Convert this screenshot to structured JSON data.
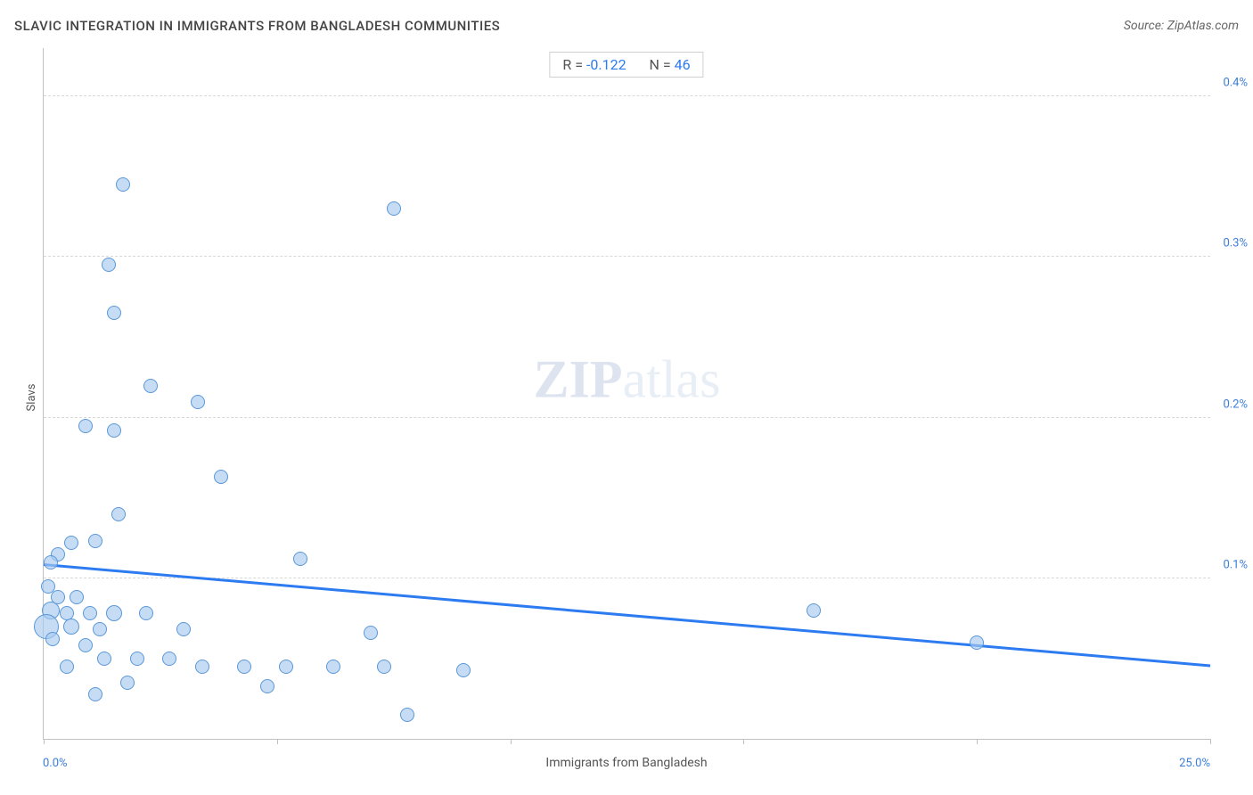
{
  "title": "SLAVIC INTEGRATION IN IMMIGRANTS FROM BANGLADESH COMMUNITIES",
  "source": "Source: ZipAtlas.com",
  "watermark_bold": "ZIP",
  "watermark_light": "atlas",
  "stats": {
    "r_label": "R =",
    "r_value": "-0.122",
    "n_label": "N =",
    "n_value": "46"
  },
  "chart": {
    "type": "scatter",
    "xlabel": "Immigrants from Bangladesh",
    "ylabel": "Slavs",
    "xlim": [
      0.0,
      25.0
    ],
    "ylim": [
      0.0,
      0.43
    ],
    "x_min_label": "0.0%",
    "x_max_label": "25.0%",
    "y_ticks": [
      0.1,
      0.2,
      0.3,
      0.4
    ],
    "y_tick_labels": [
      "0.1%",
      "0.2%",
      "0.3%",
      "0.4%"
    ],
    "x_tick_positions": [
      0,
      5,
      10,
      15,
      20,
      25
    ],
    "grid_color": "#d8d8d8",
    "axis_color": "#c0c0c0",
    "point_fill": "rgba(168,202,240,0.65)",
    "point_stroke": "#5a98d8",
    "trend_color": "#2d7bf0",
    "trend_y_start": 0.108,
    "trend_y_end": 0.045,
    "background_color": "#ffffff",
    "label_color": "#555555",
    "tick_label_color": "#3b7dd8",
    "title_fontsize": 15,
    "label_fontsize": 13,
    "points": [
      {
        "x": 1.7,
        "y": 0.345,
        "r": 8
      },
      {
        "x": 7.5,
        "y": 0.33,
        "r": 8
      },
      {
        "x": 1.4,
        "y": 0.295,
        "r": 8
      },
      {
        "x": 1.5,
        "y": 0.265,
        "r": 8
      },
      {
        "x": 2.3,
        "y": 0.22,
        "r": 8
      },
      {
        "x": 3.3,
        "y": 0.21,
        "r": 8
      },
      {
        "x": 0.9,
        "y": 0.195,
        "r": 8
      },
      {
        "x": 1.5,
        "y": 0.192,
        "r": 8
      },
      {
        "x": 3.8,
        "y": 0.163,
        "r": 8
      },
      {
        "x": 1.6,
        "y": 0.14,
        "r": 8
      },
      {
        "x": 1.1,
        "y": 0.123,
        "r": 8
      },
      {
        "x": 0.6,
        "y": 0.122,
        "r": 8
      },
      {
        "x": 0.3,
        "y": 0.115,
        "r": 8
      },
      {
        "x": 5.5,
        "y": 0.112,
        "r": 8
      },
      {
        "x": 0.15,
        "y": 0.11,
        "r": 8
      },
      {
        "x": 0.1,
        "y": 0.095,
        "r": 8
      },
      {
        "x": 0.3,
        "y": 0.088,
        "r": 8
      },
      {
        "x": 0.7,
        "y": 0.088,
        "r": 8
      },
      {
        "x": 0.15,
        "y": 0.08,
        "r": 10
      },
      {
        "x": 0.5,
        "y": 0.078,
        "r": 8
      },
      {
        "x": 1.0,
        "y": 0.078,
        "r": 8
      },
      {
        "x": 1.5,
        "y": 0.078,
        "r": 9
      },
      {
        "x": 2.2,
        "y": 0.078,
        "r": 8
      },
      {
        "x": 16.5,
        "y": 0.08,
        "r": 8
      },
      {
        "x": 0.05,
        "y": 0.07,
        "r": 14
      },
      {
        "x": 0.6,
        "y": 0.07,
        "r": 9
      },
      {
        "x": 1.2,
        "y": 0.068,
        "r": 8
      },
      {
        "x": 3.0,
        "y": 0.068,
        "r": 8
      },
      {
        "x": 7.0,
        "y": 0.066,
        "r": 8
      },
      {
        "x": 0.2,
        "y": 0.062,
        "r": 8
      },
      {
        "x": 0.9,
        "y": 0.058,
        "r": 8
      },
      {
        "x": 20.0,
        "y": 0.06,
        "r": 8
      },
      {
        "x": 1.3,
        "y": 0.05,
        "r": 8
      },
      {
        "x": 2.0,
        "y": 0.05,
        "r": 8
      },
      {
        "x": 2.7,
        "y": 0.05,
        "r": 8
      },
      {
        "x": 0.5,
        "y": 0.045,
        "r": 8
      },
      {
        "x": 3.4,
        "y": 0.045,
        "r": 8
      },
      {
        "x": 4.3,
        "y": 0.045,
        "r": 8
      },
      {
        "x": 5.2,
        "y": 0.045,
        "r": 8
      },
      {
        "x": 6.2,
        "y": 0.045,
        "r": 8
      },
      {
        "x": 7.3,
        "y": 0.045,
        "r": 8
      },
      {
        "x": 9.0,
        "y": 0.043,
        "r": 8
      },
      {
        "x": 1.8,
        "y": 0.035,
        "r": 8
      },
      {
        "x": 4.8,
        "y": 0.033,
        "r": 8
      },
      {
        "x": 1.1,
        "y": 0.028,
        "r": 8
      },
      {
        "x": 7.8,
        "y": 0.015,
        "r": 8
      }
    ]
  }
}
